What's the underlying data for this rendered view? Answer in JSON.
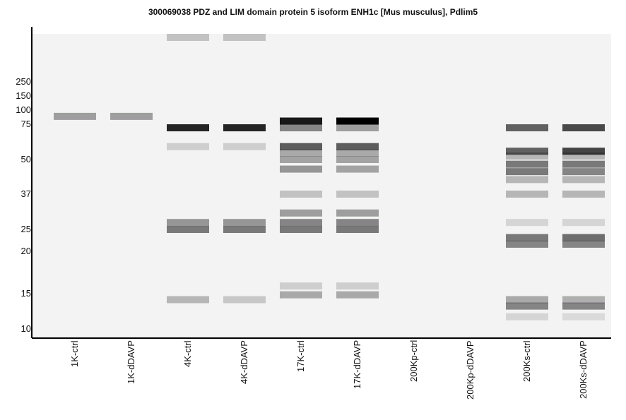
{
  "title": "300069038 PDZ and LIM domain protein 5 isoform ENH1c [Mus musculus], Pdlim5",
  "chart_data": {
    "type": "gel-blot",
    "title": "300069038 PDZ and LIM domain protein 5 isoform ENH1c [Mus musculus], Pdlim5",
    "lanes": [
      "1K-ctrl",
      "1K-dDAVP",
      "4K-ctrl",
      "4K-dDAVP",
      "17K-ctrl",
      "17K-dDAVP",
      "200Kp-ctrl",
      "200Kp-dDAVP",
      "200Ks-ctrl",
      "200Ks-dDAVP"
    ],
    "mw_markers": [
      {
        "label": "250",
        "kda": 250
      },
      {
        "label": "150",
        "kda": 150
      },
      {
        "label": "100",
        "kda": 100
      },
      {
        "label": "75",
        "kda": 75
      },
      {
        "label": "50",
        "kda": 50
      },
      {
        "label": "37",
        "kda": 37
      },
      {
        "label": "25",
        "kda": 25
      },
      {
        "label": "20",
        "kda": 20
      },
      {
        "label": "15",
        "kda": 15
      },
      {
        "label": "10",
        "kda": 10
      }
    ],
    "bands_by_lane": [
      [
        {
          "kda": 88,
          "intensity": 0.35
        }
      ],
      [
        {
          "kda": 88,
          "intensity": 0.35
        }
      ],
      [
        {
          "kda": 400,
          "intensity": 0.2
        },
        {
          "kda": 72,
          "intensity": 0.85
        },
        {
          "kda": 58,
          "intensity": 0.15
        },
        {
          "kda": 27,
          "intensity": 0.38
        },
        {
          "kda": 25,
          "intensity": 0.5
        },
        {
          "kda": 14,
          "intensity": 0.25
        }
      ],
      [
        {
          "kda": 400,
          "intensity": 0.2
        },
        {
          "kda": 72,
          "intensity": 0.85
        },
        {
          "kda": 58,
          "intensity": 0.15
        },
        {
          "kda": 27,
          "intensity": 0.38
        },
        {
          "kda": 25,
          "intensity": 0.5
        },
        {
          "kda": 14,
          "intensity": 0.18
        }
      ],
      [
        {
          "kda": 80,
          "intensity": 0.9
        },
        {
          "kda": 72,
          "intensity": 0.45
        },
        {
          "kda": 58,
          "intensity": 0.62
        },
        {
          "kda": 54,
          "intensity": 0.3
        },
        {
          "kda": 50,
          "intensity": 0.33
        },
        {
          "kda": 46,
          "intensity": 0.38
        },
        {
          "kda": 37,
          "intensity": 0.2
        },
        {
          "kda": 30,
          "intensity": 0.35
        },
        {
          "kda": 27,
          "intensity": 0.45
        },
        {
          "kda": 25,
          "intensity": 0.5
        },
        {
          "kda": 15.8,
          "intensity": 0.15
        },
        {
          "kda": 14.8,
          "intensity": 0.3
        }
      ],
      [
        {
          "kda": 80,
          "intensity": 1.0
        },
        {
          "kda": 72,
          "intensity": 0.35
        },
        {
          "kda": 58,
          "intensity": 0.62
        },
        {
          "kda": 54,
          "intensity": 0.3
        },
        {
          "kda": 50,
          "intensity": 0.33
        },
        {
          "kda": 46,
          "intensity": 0.33
        },
        {
          "kda": 37,
          "intensity": 0.2
        },
        {
          "kda": 30,
          "intensity": 0.35
        },
        {
          "kda": 27,
          "intensity": 0.45
        },
        {
          "kda": 25,
          "intensity": 0.5
        },
        {
          "kda": 15.8,
          "intensity": 0.15
        },
        {
          "kda": 14.8,
          "intensity": 0.3
        }
      ],
      [],
      [],
      [
        {
          "kda": 72,
          "intensity": 0.6
        },
        {
          "kda": 55,
          "intensity": 0.6
        },
        {
          "kda": 52,
          "intensity": 0.25
        },
        {
          "kda": 48,
          "intensity": 0.5
        },
        {
          "kda": 45,
          "intensity": 0.5
        },
        {
          "kda": 42,
          "intensity": 0.25
        },
        {
          "kda": 37,
          "intensity": 0.25
        },
        {
          "kda": 27,
          "intensity": 0.12
        },
        {
          "kda": 23,
          "intensity": 0.5
        },
        {
          "kda": 21.5,
          "intensity": 0.45
        },
        {
          "kda": 14,
          "intensity": 0.3
        },
        {
          "kda": 13,
          "intensity": 0.45
        },
        {
          "kda": 11.5,
          "intensity": 0.12
        }
      ],
      [
        {
          "kda": 72,
          "intensity": 0.7
        },
        {
          "kda": 55,
          "intensity": 0.72
        },
        {
          "kda": 52,
          "intensity": 0.25
        },
        {
          "kda": 48,
          "intensity": 0.5
        },
        {
          "kda": 45,
          "intensity": 0.45
        },
        {
          "kda": 42,
          "intensity": 0.25
        },
        {
          "kda": 37,
          "intensity": 0.25
        },
        {
          "kda": 27,
          "intensity": 0.12
        },
        {
          "kda": 23,
          "intensity": 0.55
        },
        {
          "kda": 21.5,
          "intensity": 0.45
        },
        {
          "kda": 14,
          "intensity": 0.28
        },
        {
          "kda": 13,
          "intensity": 0.45
        },
        {
          "kda": 11.5,
          "intensity": 0.1
        }
      ]
    ],
    "background_color": "#f2f3f2",
    "band_color": "#000000",
    "axis_color": "#000000"
  }
}
